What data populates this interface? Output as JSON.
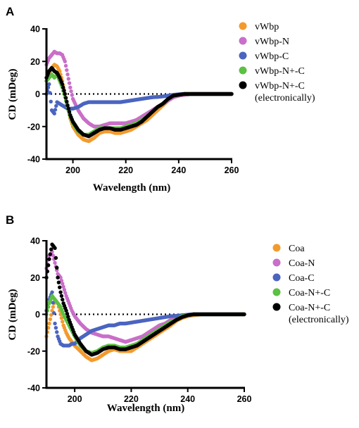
{
  "chart_data": [
    {
      "panel": "A",
      "type": "scatter",
      "xlabel": "Wavelength (nm)",
      "ylabel": "CD (mDeg)",
      "xlim": [
        190,
        260
      ],
      "ylim": [
        -40,
        40
      ],
      "xticks": [
        200,
        220,
        240,
        260
      ],
      "yticks": [
        40,
        20,
        0,
        -20,
        -40
      ],
      "zero_line": "dotted",
      "legend_placement": "right",
      "series": [
        {
          "name": "vWbp",
          "color": "#f39a2d",
          "x": [
            190,
            191,
            192,
            193,
            194,
            195,
            196,
            197,
            198,
            199,
            200,
            202,
            204,
            206,
            208,
            210,
            212,
            214,
            216,
            218,
            220,
            222,
            224,
            226,
            228,
            230,
            232,
            234,
            236,
            238,
            240,
            242,
            245,
            250,
            255,
            260
          ],
          "y": [
            8,
            12,
            16,
            18,
            17,
            14,
            8,
            0,
            -8,
            -15,
            -20,
            -25,
            -28,
            -29,
            -27,
            -24,
            -23,
            -23,
            -24,
            -24,
            -23,
            -22,
            -20,
            -18,
            -16,
            -13,
            -10,
            -7,
            -4,
            -2,
            -1,
            -0.5,
            0,
            0,
            0,
            0
          ]
        },
        {
          "name": "vWbp-N",
          "color": "#c96ec9",
          "x": [
            190,
            191,
            192,
            193,
            194,
            195,
            196,
            197,
            198,
            199,
            200,
            202,
            204,
            206,
            208,
            210,
            212,
            214,
            216,
            218,
            220,
            222,
            224,
            226,
            228,
            230,
            232,
            234,
            236,
            238,
            240,
            242,
            245,
            250,
            255,
            260
          ],
          "y": [
            18,
            22,
            24,
            26,
            25,
            25,
            24,
            20,
            12,
            4,
            -3,
            -10,
            -15,
            -18,
            -20,
            -20,
            -19,
            -18,
            -18,
            -18,
            -18,
            -17,
            -16,
            -14,
            -12,
            -10,
            -8,
            -6,
            -4,
            -2,
            -1,
            -0.5,
            0,
            0,
            0,
            0
          ]
        },
        {
          "name": "vWbp-C",
          "color": "#4a64c0",
          "x": [
            190,
            191,
            192,
            193,
            194,
            195,
            196,
            197,
            198,
            199,
            200,
            202,
            204,
            206,
            208,
            210,
            212,
            214,
            216,
            218,
            220,
            222,
            224,
            226,
            228,
            230,
            232,
            234,
            236,
            238,
            240,
            242,
            245,
            250,
            255,
            260
          ],
          "y": [
            0,
            6,
            -10,
            -12,
            -5,
            -6,
            -7,
            -8,
            -9,
            -9,
            -9,
            -8,
            -6,
            -5,
            -5,
            -5,
            -5,
            -5,
            -5,
            -5,
            -4.5,
            -4,
            -3.5,
            -3,
            -2.5,
            -2,
            -1.8,
            -1.5,
            -1,
            -0.5,
            -0.2,
            0,
            0,
            0,
            0,
            0
          ]
        },
        {
          "name": "vWbp-N+-C",
          "color": "#5cc042",
          "x": [
            190,
            191,
            192,
            193,
            194,
            195,
            196,
            197,
            198,
            199,
            200,
            202,
            204,
            206,
            208,
            210,
            212,
            214,
            216,
            218,
            220,
            222,
            224,
            226,
            228,
            230,
            232,
            234,
            236,
            238,
            240,
            242,
            245,
            250,
            255,
            260
          ],
          "y": [
            8,
            10,
            12,
            10,
            12,
            8,
            4,
            -2,
            -8,
            -14,
            -18,
            -23,
            -25,
            -25,
            -23,
            -21,
            -21,
            -21,
            -21,
            -21,
            -20,
            -19,
            -18,
            -16,
            -14,
            -11,
            -8,
            -6,
            -3,
            -1,
            -0.5,
            0,
            0,
            0,
            0,
            0
          ]
        },
        {
          "name": "vWbp-N+-C\n(electronically)",
          "color": "#000000",
          "x": [
            190,
            191,
            192,
            193,
            194,
            195,
            196,
            197,
            198,
            199,
            200,
            202,
            204,
            206,
            208,
            210,
            212,
            214,
            216,
            218,
            220,
            222,
            224,
            226,
            228,
            230,
            232,
            234,
            236,
            238,
            240,
            242,
            245,
            250,
            255,
            260
          ],
          "y": [
            10,
            14,
            16,
            14,
            13,
            10,
            6,
            0,
            -7,
            -13,
            -17,
            -22,
            -25,
            -26,
            -24,
            -22,
            -21,
            -21,
            -22,
            -22,
            -21,
            -20,
            -19,
            -17,
            -14,
            -11,
            -8,
            -6,
            -3,
            -1,
            -0.5,
            0,
            0,
            0,
            0,
            0
          ]
        }
      ]
    },
    {
      "panel": "B",
      "type": "scatter",
      "xlabel": "Wavelength (nm)",
      "ylabel": "CD (mDeg)",
      "xlim": [
        190,
        260
      ],
      "ylim": [
        -40,
        40
      ],
      "xticks": [
        200,
        220,
        240,
        260
      ],
      "yticks": [
        40,
        20,
        0,
        -20,
        -40
      ],
      "zero_line": "dotted",
      "legend_placement": "right",
      "series": [
        {
          "name": "Coa",
          "color": "#f39a2d",
          "x": [
            190,
            191,
            192,
            193,
            194,
            195,
            196,
            197,
            198,
            199,
            200,
            202,
            204,
            206,
            208,
            210,
            212,
            214,
            216,
            218,
            220,
            222,
            224,
            226,
            228,
            230,
            232,
            234,
            236,
            238,
            240,
            242,
            245,
            250,
            255,
            260
          ],
          "y": [
            -12,
            -5,
            2,
            8,
            6,
            0,
            -6,
            -10,
            -13,
            -15,
            -17,
            -20,
            -23,
            -25,
            -24,
            -22,
            -20,
            -19,
            -20,
            -20,
            -20,
            -18,
            -16,
            -14,
            -12,
            -10,
            -8,
            -6,
            -3.5,
            -2,
            -1,
            -0.5,
            0,
            0,
            0,
            0
          ]
        },
        {
          "name": "Coa-N",
          "color": "#c96ec9",
          "x": [
            190,
            191,
            192,
            193,
            194,
            195,
            196,
            197,
            198,
            199,
            200,
            202,
            204,
            206,
            208,
            210,
            212,
            214,
            216,
            218,
            220,
            222,
            224,
            226,
            228,
            230,
            232,
            234,
            236,
            238,
            240,
            242,
            245,
            250,
            255,
            260
          ],
          "y": [
            25,
            32,
            34,
            28,
            22,
            20,
            15,
            10,
            6,
            2,
            -1,
            -5,
            -8,
            -10,
            -11,
            -12,
            -12,
            -13,
            -14,
            -15,
            -14,
            -13,
            -12,
            -10,
            -8,
            -6,
            -5,
            -3,
            -2,
            -1,
            -0.5,
            0,
            0,
            0,
            0,
            0
          ]
        },
        {
          "name": "Coa-C",
          "color": "#4a64c0",
          "x": [
            190,
            191,
            192,
            193,
            194,
            195,
            196,
            197,
            198,
            199,
            200,
            202,
            204,
            206,
            208,
            210,
            212,
            214,
            216,
            218,
            220,
            222,
            224,
            226,
            228,
            230,
            232,
            234,
            236,
            238,
            240,
            242,
            245,
            250,
            255,
            260
          ],
          "y": [
            2,
            8,
            12,
            -5,
            -12,
            -16,
            -17,
            -17,
            -17,
            -16,
            -16,
            -13,
            -11,
            -9,
            -8,
            -7,
            -6,
            -6,
            -5,
            -5,
            -4.5,
            -4,
            -3.5,
            -3,
            -2.5,
            -2,
            -1.5,
            -1,
            -0.8,
            -0.5,
            -0.2,
            0,
            0,
            0,
            0,
            0
          ]
        },
        {
          "name": "Coa-N+-C",
          "color": "#5cc042",
          "x": [
            190,
            191,
            192,
            193,
            194,
            195,
            196,
            197,
            198,
            199,
            200,
            202,
            204,
            206,
            208,
            210,
            212,
            214,
            216,
            218,
            220,
            222,
            224,
            226,
            228,
            230,
            232,
            234,
            236,
            238,
            240,
            242,
            245,
            250,
            255,
            260
          ],
          "y": [
            0,
            6,
            10,
            8,
            6,
            4,
            0,
            -3,
            -6,
            -9,
            -12,
            -17,
            -20,
            -21,
            -20,
            -18,
            -17,
            -17,
            -18,
            -18,
            -17,
            -16,
            -14,
            -12,
            -10,
            -8,
            -6,
            -4,
            -3,
            -1,
            -0.5,
            0,
            0,
            0,
            0,
            0
          ]
        },
        {
          "name": "Coa-N+-C\n(electronically)",
          "color": "#000000",
          "x": [
            190,
            191,
            192,
            193,
            194,
            195,
            196,
            197,
            198,
            199,
            200,
            202,
            204,
            206,
            208,
            210,
            212,
            214,
            216,
            218,
            220,
            222,
            224,
            226,
            228,
            230,
            232,
            234,
            236,
            238,
            240,
            242,
            245,
            250,
            255,
            260
          ],
          "y": [
            20,
            30,
            38,
            36,
            20,
            12,
            6,
            2,
            -3,
            -7,
            -11,
            -16,
            -20,
            -22,
            -21,
            -19,
            -18,
            -18,
            -19,
            -19,
            -18,
            -17,
            -15,
            -13,
            -11,
            -9,
            -7,
            -5,
            -3,
            -1.5,
            -0.5,
            0,
            0,
            0,
            0,
            0
          ]
        }
      ]
    }
  ]
}
